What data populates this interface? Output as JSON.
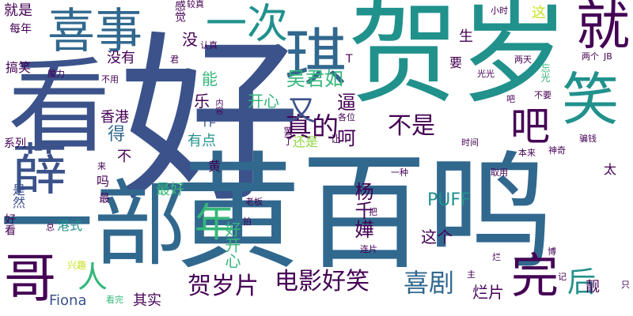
{
  "palette": {
    "navy": "#440154",
    "indigo": "#3b528b",
    "blue": "#31688e",
    "teal": "#21918c",
    "green": "#35b779",
    "lime": "#90d743",
    "yellow": "#c8e020"
  },
  "words": [
    "好",
    "黄百鸣",
    "贺岁",
    "看",
    "一部",
    "喜事",
    "就",
    "琪",
    "薛",
    "笑",
    "一次",
    "吴君如",
    "真的",
    "不是",
    "吧",
    "又",
    "哥",
    "人",
    "年",
    "电影好笑",
    "喜剧",
    "贺岁片",
    "完",
    "后",
    "PUFF",
    "杨千嬅",
    "开心",
    "好开心",
    "这个",
    "香港",
    "能",
    "乐",
    "最好",
    "有点",
    "逼",
    "得",
    "呵",
    "是然",
    "好看",
    "港式",
    "系列",
    "搞笑",
    "每年",
    "就是",
    "魔力",
    "没有",
    "没",
    "感觉",
    "生",
    "要",
    "两天",
    "两个",
    "JB",
    "光光",
    "忘光",
    "其实",
    "靓",
    "烂片",
    "Fiona",
    "看完",
    "兴趣",
    "太",
    "还是",
    "让",
    "罢了",
    "时间",
    "各位",
    "本来",
    "骗钱",
    "神奇",
    "一种",
    "取用",
    "老板",
    "拍",
    "把",
    "连片",
    "不要",
    "较真",
    "认真",
    "君",
    "小时",
    "这",
    "不用",
    "内容",
    "来",
    "吗",
    "最",
    "不",
    "总",
    "博",
    "只",
    "T",
    "作",
    "黄",
    "记",
    "主",
    "烂",
    "吧"
  ]
}
